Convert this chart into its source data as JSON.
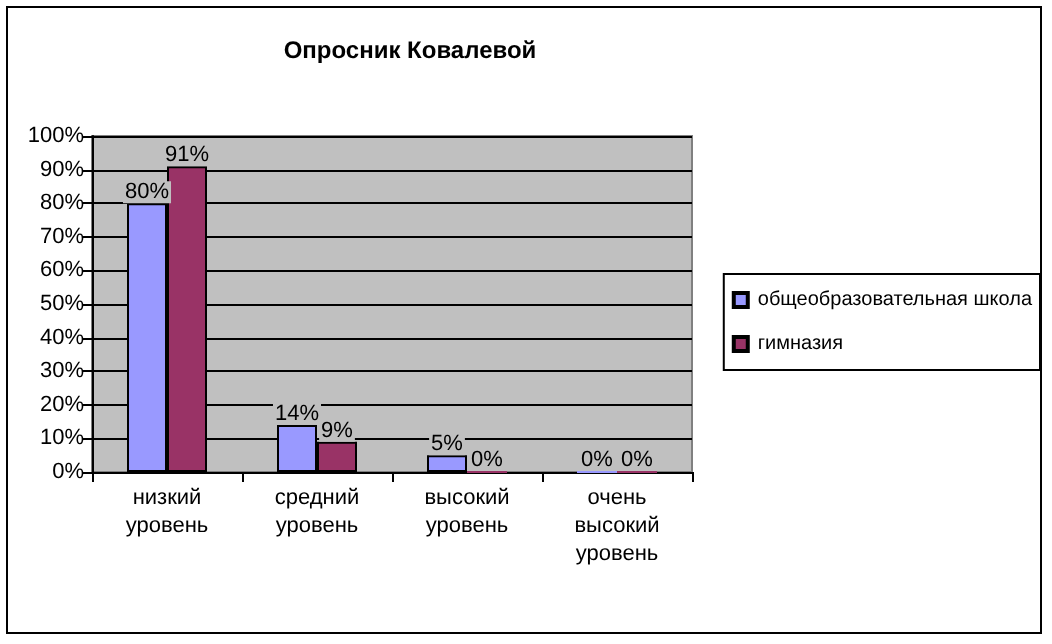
{
  "chart_data": {
    "type": "bar",
    "title": "Опросник Ковалевой",
    "categories": [
      "низкий уровень",
      "средний уровень",
      "высокий уровень",
      "очень высокий уровень"
    ],
    "series": [
      {
        "name": "общеобразовательная школа",
        "color": "#9999ff",
        "values": [
          80,
          14,
          5,
          0
        ],
        "value_labels": [
          "80%",
          "14%",
          "5%",
          "0%"
        ]
      },
      {
        "name": "гимназия",
        "color": "#993366",
        "values": [
          91,
          9,
          0,
          0
        ],
        "value_labels": [
          "91%",
          "9%",
          "0%",
          "0%"
        ]
      }
    ],
    "ylim": [
      0,
      100
    ],
    "yticks": [
      {
        "value": 0,
        "label": "0%"
      },
      {
        "value": 10,
        "label": "10%"
      },
      {
        "value": 20,
        "label": "20%"
      },
      {
        "value": 30,
        "label": "30%"
      },
      {
        "value": 40,
        "label": "40%"
      },
      {
        "value": 50,
        "label": "50%"
      },
      {
        "value": 60,
        "label": "60%"
      },
      {
        "value": 70,
        "label": "70%"
      },
      {
        "value": 80,
        "label": "80%"
      },
      {
        "value": 90,
        "label": "90%"
      },
      {
        "value": 100,
        "label": "100%"
      }
    ],
    "grid": "y",
    "legend": "right"
  }
}
